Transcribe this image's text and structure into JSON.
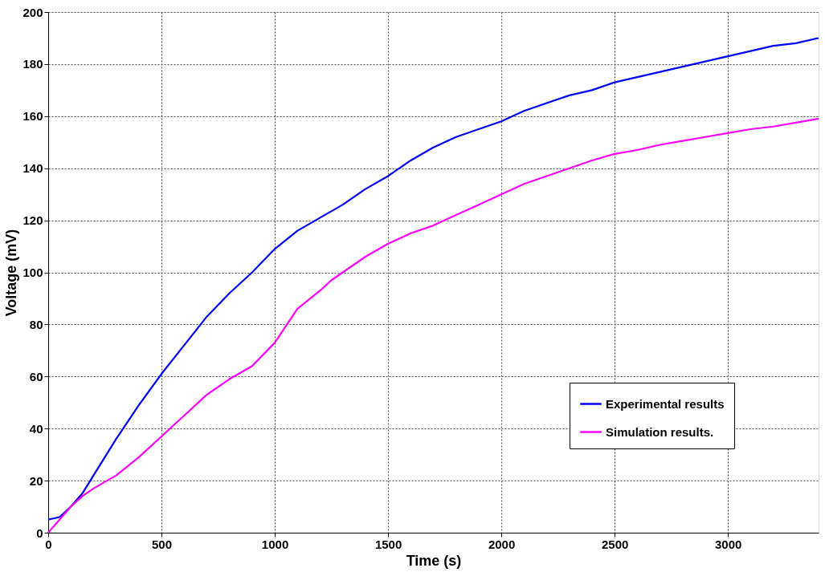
{
  "chart_data": {
    "type": "line",
    "xlabel": "Time (s)",
    "ylabel": "Voltage (mV)",
    "xlim": [
      0,
      3400
    ],
    "xticks": [
      0,
      500,
      1000,
      1500,
      2000,
      2500,
      3000
    ],
    "ylim": [
      0,
      200
    ],
    "yticks": [
      0,
      20,
      40,
      60,
      80,
      100,
      120,
      140,
      160,
      180,
      200
    ],
    "grid": true,
    "legend": "bottom right",
    "line_style": "solid",
    "marker": "none",
    "series": [
      {
        "name": "Experimental results",
        "color": "#0000ff",
        "x": [
          0,
          50,
          100,
          150,
          200,
          300,
          400,
          500,
          600,
          700,
          800,
          900,
          1000,
          1100,
          1200,
          1300,
          1400,
          1500,
          1600,
          1700,
          1800,
          1900,
          2000,
          2100,
          2200,
          2300,
          2400,
          2500,
          2600,
          2700,
          2800,
          2900,
          3000,
          3100,
          3200,
          3300,
          3400
        ],
        "values": [
          5,
          6,
          10,
          15,
          22,
          36,
          49,
          61,
          72,
          83,
          92,
          100,
          109,
          116,
          121,
          126,
          132,
          137,
          143,
          148,
          152,
          155,
          158,
          162,
          165,
          168,
          170,
          173,
          175,
          177,
          179,
          181,
          183,
          185,
          187,
          188,
          190
        ]
      },
      {
        "name": "Simulation results.",
        "color": "#ff00ff",
        "x": [
          0,
          50,
          100,
          150,
          200,
          300,
          400,
          500,
          600,
          700,
          800,
          900,
          1000,
          1100,
          1200,
          1250,
          1300,
          1400,
          1500,
          1600,
          1700,
          1800,
          1900,
          2000,
          2100,
          2200,
          2300,
          2400,
          2500,
          2600,
          2700,
          2800,
          2900,
          3000,
          3100,
          3200,
          3300,
          3400
        ],
        "values": [
          0,
          5,
          10,
          14,
          17,
          22,
          29,
          37,
          45,
          53,
          59,
          64,
          73,
          86,
          93,
          97,
          100,
          106,
          111,
          115,
          118,
          122,
          126,
          130,
          134,
          137,
          140,
          143,
          145.5,
          147,
          149,
          150.5,
          152,
          153.5,
          155,
          156,
          157.5,
          159
        ]
      }
    ]
  }
}
